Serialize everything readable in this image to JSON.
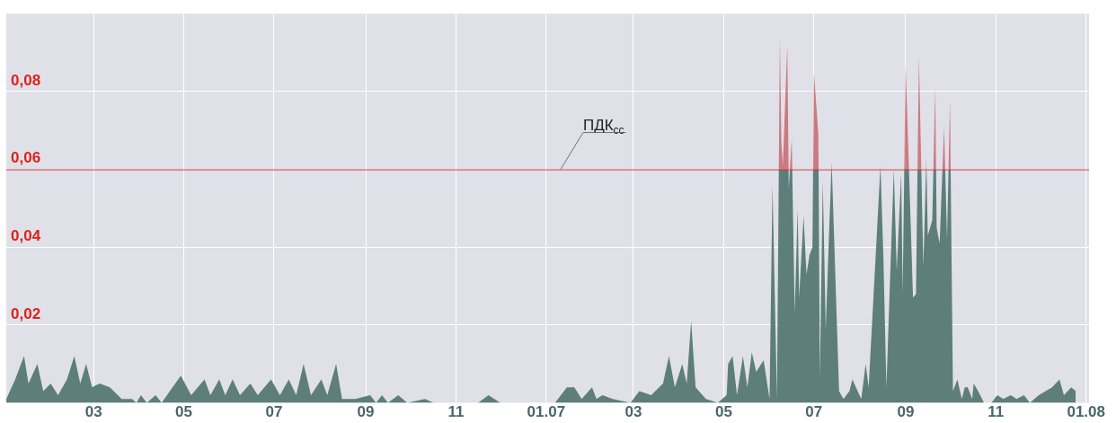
{
  "chart_data": {
    "type": "area",
    "x": [
      "2006-01-01",
      "2006-01-07",
      "2006-01-13",
      "2006-01-16",
      "2006-01-22",
      "2006-01-26",
      "2006-01-31",
      "2006-02-05",
      "2006-02-11",
      "2006-02-16",
      "2006-02-20",
      "2006-02-24",
      "2006-02-28",
      "2006-03-05",
      "2006-03-12",
      "2006-03-20",
      "2006-03-27",
      "2006-03-30",
      "2006-04-02",
      "2006-04-06",
      "2006-04-12",
      "2006-04-16",
      "2006-04-29",
      "2006-05-06",
      "2006-05-15",
      "2006-05-19",
      "2006-05-25",
      "2006-05-29",
      "2006-06-03",
      "2006-06-08",
      "2006-06-15",
      "2006-06-20",
      "2006-06-29",
      "2006-07-05",
      "2006-07-11",
      "2006-07-16",
      "2006-07-21",
      "2006-07-26",
      "2006-08-02",
      "2006-08-06",
      "2006-08-12",
      "2006-08-16",
      "2006-08-25",
      "2006-09-04",
      "2006-09-08",
      "2006-09-12",
      "2006-09-16",
      "2006-09-23",
      "2006-09-29",
      "2006-10-11",
      "2006-10-17",
      "2006-10-30",
      "2006-11-09",
      "2006-11-16",
      "2006-11-23",
      "2006-12-01",
      "2006-12-25",
      "2006-12-31",
      "2007-01-07",
      "2007-01-15",
      "2007-01-20",
      "2007-01-25",
      "2007-02-01",
      "2007-02-04",
      "2007-02-08",
      "2007-02-15",
      "2007-02-27",
      "2007-03-05",
      "2007-03-13",
      "2007-03-21",
      "2007-03-25",
      "2007-03-29",
      "2007-04-03",
      "2007-04-06",
      "2007-04-09",
      "2007-04-12",
      "2007-04-19",
      "2007-04-27",
      "2007-05-03",
      "2007-05-04",
      "2007-05-07",
      "2007-05-10",
      "2007-05-14",
      "2007-05-17",
      "2007-05-20",
      "2007-05-23",
      "2007-05-28",
      "2007-06-01",
      "2007-06-03",
      "2007-06-06",
      "2007-06-08",
      "2007-06-09",
      "2007-06-10",
      "2007-06-13",
      "2007-06-14",
      "2007-06-16",
      "2007-06-18",
      "2007-06-20",
      "2007-06-21",
      "2007-06-24",
      "2007-06-26",
      "2007-06-28",
      "2007-06-30",
      "2007-07-01",
      "2007-07-04",
      "2007-07-05",
      "2007-07-07",
      "2007-07-09",
      "2007-07-11",
      "2007-07-13",
      "2007-07-18",
      "2007-07-21",
      "2007-07-25",
      "2007-07-27",
      "2007-08-02",
      "2007-08-05",
      "2007-08-07",
      "2007-08-15",
      "2007-08-17",
      "2007-08-19",
      "2007-08-24",
      "2007-08-26",
      "2007-08-29",
      "2007-08-30",
      "2007-09-01",
      "2007-09-03",
      "2007-09-06",
      "2007-09-08",
      "2007-09-10",
      "2007-09-13",
      "2007-09-15",
      "2007-09-16",
      "2007-09-19",
      "2007-09-21",
      "2007-09-22",
      "2007-09-24",
      "2007-09-27",
      "2007-09-29",
      "2007-10-01",
      "2007-10-02",
      "2007-10-03",
      "2007-10-06",
      "2007-10-09",
      "2007-10-11",
      "2007-10-13",
      "2007-10-16",
      "2007-10-17",
      "2007-10-20",
      "2007-10-24",
      "2007-10-29",
      "2007-11-02",
      "2007-11-06",
      "2007-11-11",
      "2007-11-15",
      "2007-11-20",
      "2007-11-24",
      "2007-11-30",
      "2007-12-09",
      "2007-12-14",
      "2007-12-17",
      "2007-12-22",
      "2007-12-25"
    ],
    "series": [
      {
        "color": "#5d7e7b",
        "values": [
          0.001,
          0.006,
          0.012,
          0.005,
          0.01,
          0.003,
          0.005,
          0.002,
          0.006,
          0.012,
          0.005,
          0.01,
          0.004,
          0.005,
          0.004,
          0.001,
          0.001,
          0.0,
          0.002,
          0.0,
          0.002,
          0.0,
          0.007,
          0.002,
          0.006,
          0.002,
          0.006,
          0.002,
          0.006,
          0.002,
          0.005,
          0.002,
          0.006,
          0.002,
          0.006,
          0.002,
          0.01,
          0.002,
          0.006,
          0.002,
          0.01,
          0.001,
          0.001,
          0.002,
          0.0,
          0.002,
          0.0,
          0.002,
          0.0,
          0.001,
          0.0,
          0.0,
          0.0,
          0.0,
          0.002,
          0.0,
          0.0,
          0.0,
          0.0,
          0.004,
          0.004,
          0.001,
          0.004,
          0.001,
          0.002,
          0.001,
          0.0,
          0.003,
          0.002,
          0.005,
          0.012,
          0.004,
          0.01,
          0.005,
          0.021,
          0.004,
          0.001,
          0.0,
          0.002,
          0.01,
          0.012,
          0.002,
          0.012,
          0.004,
          0.013,
          0.008,
          0.011,
          0.001,
          0.056,
          0.001,
          0.094,
          0.067,
          0.061,
          0.092,
          0.055,
          0.068,
          0.023,
          0.05,
          0.027,
          0.048,
          0.033,
          0.038,
          0.04,
          0.085,
          0.069,
          0.006,
          0.057,
          0.019,
          0.041,
          0.062,
          0.003,
          0.001,
          0.003,
          0.006,
          0.001,
          0.01,
          0.004,
          0.061,
          0.037,
          0.004,
          0.06,
          0.034,
          0.059,
          0.028,
          0.087,
          0.063,
          0.027,
          0.028,
          0.089,
          0.035,
          0.063,
          0.043,
          0.047,
          0.081,
          0.045,
          0.041,
          0.071,
          0.042,
          0.078,
          0.039,
          0.003,
          0.006,
          0.001,
          0.004,
          0.004,
          0.001,
          0.005,
          0.003,
          0.0,
          0.0,
          0.002,
          0.001,
          0.002,
          0.001,
          0.002,
          0.0,
          0.002,
          0.004,
          0.006,
          0.002,
          0.004,
          0.003
        ]
      }
    ],
    "xlim": [
      "2006-01-01",
      "2008-01-03"
    ],
    "xticks": [
      {
        "value": "2006-03-01",
        "label": "03"
      },
      {
        "value": "2006-05-01",
        "label": "05"
      },
      {
        "value": "2006-07-01",
        "label": "07"
      },
      {
        "value": "2006-09-01",
        "label": "09"
      },
      {
        "value": "2006-11-01",
        "label": "11"
      },
      {
        "value": "2007-01-01",
        "label": "01.07"
      },
      {
        "value": "2007-03-01",
        "label": "03"
      },
      {
        "value": "2007-05-01",
        "label": "05"
      },
      {
        "value": "2007-07-01",
        "label": "07"
      },
      {
        "value": "2007-09-01",
        "label": "09"
      },
      {
        "value": "2007-11-01",
        "label": "11"
      },
      {
        "value": "2008-01-01",
        "label": "01.08"
      }
    ],
    "ylim": [
      0,
      0.1
    ],
    "yticks": [
      {
        "value": 0.02,
        "label": "0,02"
      },
      {
        "value": 0.04,
        "label": "0,04"
      },
      {
        "value": 0.06,
        "label": "0,06"
      },
      {
        "value": 0.08,
        "label": "0,08"
      }
    ],
    "ref_lines": [
      {
        "axis": "y",
        "value": 0.06,
        "label": "ПДК$_{сс}$",
        "color": "#c0343c"
      }
    ],
    "grid": true
  }
}
